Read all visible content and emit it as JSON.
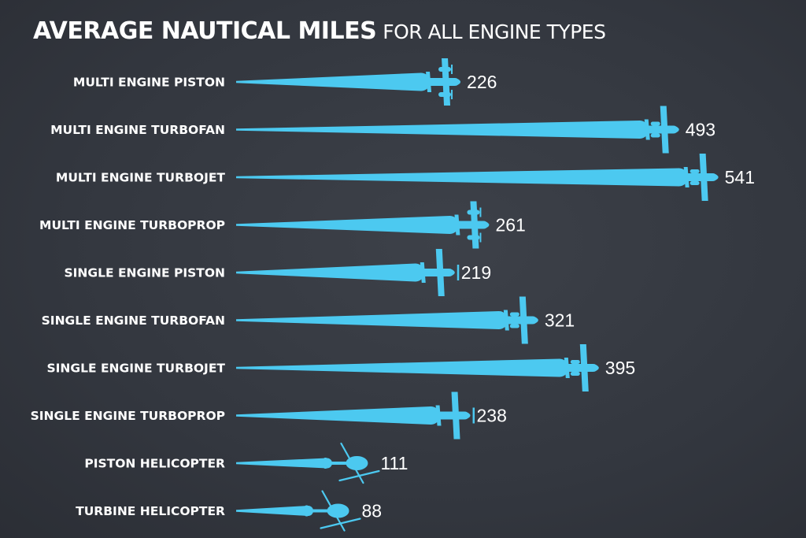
{
  "title": {
    "main": "AVERAGE NAUTICAL MILES",
    "sub": "FOR ALL ENGINE TYPES"
  },
  "colors": {
    "background": "#33373f",
    "bar": "#4cc9f0",
    "text": "#ffffff"
  },
  "chart_data": {
    "type": "bar",
    "orientation": "horizontal",
    "title": "AVERAGE NAUTICAL MILES FOR ALL ENGINE TYPES",
    "xlabel": "",
    "ylabel": "",
    "categories": [
      "MULTI ENGINE PISTON",
      "MULTI ENGINE TURBOFAN",
      "MULTI ENGINE TURBOJET",
      "MULTI ENGINE TURBOPROP",
      "SINGLE ENGINE PISTON",
      "SINGLE ENGINE TURBOFAN",
      "SINGLE ENGINE TURBOJET",
      "SINGLE ENGINE TURBOPROP",
      "PISTON HELICOPTER",
      "TURBINE HELICOPTER"
    ],
    "values": [
      226,
      493,
      541,
      261,
      219,
      321,
      395,
      238,
      111,
      88
    ],
    "icons": [
      "twin-prop-plane-icon",
      "jet-plane-icon",
      "jet-plane-icon",
      "twin-prop-plane-icon",
      "single-prop-plane-icon",
      "jet-plane-icon",
      "jet-plane-icon",
      "single-prop-plane-icon",
      "helicopter-icon",
      "helicopter-icon"
    ],
    "grid": false,
    "legend": "none",
    "data_labels": true
  }
}
